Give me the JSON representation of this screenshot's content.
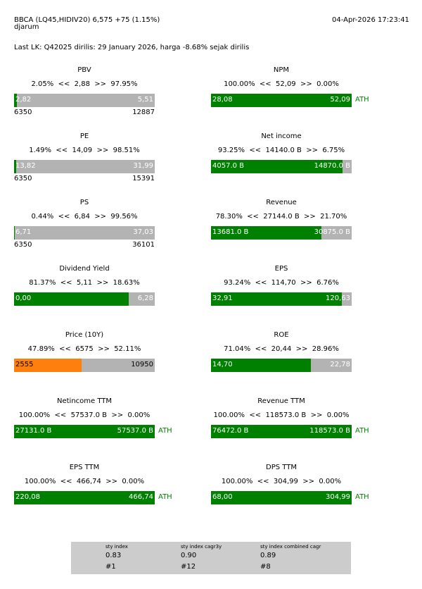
{
  "header": {
    "title": "BBCA (LQ45,HIDIV20) 6,575 +75 (1.15%)",
    "subtitle": "djarum",
    "datetime": "04-Apr-2026 17:23:41"
  },
  "last_lk": "Last LK: Q42025 dirilis: 29 January 2026, harga -8.68% sejak dirilis",
  "panels": [
    {
      "title": "PBV",
      "stats": "2.05%  <<  2,88  >>  97.95%",
      "fill_fraction": 0.0205,
      "fill_color": "#008000",
      "left_value": "2,82",
      "right_value": "5,51",
      "ath": "",
      "range_min": "6350",
      "range_max": "12887"
    },
    {
      "title": "NPM",
      "stats": "100.00%  <<  52,09  >>  0.00%",
      "fill_fraction": 1.0,
      "fill_color": "#008000",
      "left_value": "28,08",
      "right_value": "52,09",
      "ath": "ATH",
      "range_min": "",
      "range_max": ""
    },
    {
      "title": "PE",
      "stats": "1.49%  <<  14,09  >>  98.51%",
      "fill_fraction": 0.0149,
      "fill_color": "#008000",
      "left_value": "13,82",
      "right_value": "31,99",
      "ath": "",
      "range_min": "6350",
      "range_max": "15391"
    },
    {
      "title": "Net income",
      "stats": "93.25%  <<  14140.0 B  >>  6.75%",
      "fill_fraction": 0.9325,
      "fill_color": "#008000",
      "left_value": "4057.0 B",
      "right_value": "14870.0 B",
      "ath": "",
      "range_min": "",
      "range_max": ""
    },
    {
      "title": "PS",
      "stats": "0.44%  <<  6,84  >>  99.56%",
      "fill_fraction": 0.0044,
      "fill_color": "#008000",
      "left_value": "6,71",
      "right_value": "37,03",
      "ath": "",
      "range_min": "6350",
      "range_max": "36101"
    },
    {
      "title": "Revenue",
      "stats": "78.30%  <<  27144.0 B  >>  21.70%",
      "fill_fraction": 0.783,
      "fill_color": "#008000",
      "left_value": "13681.0 B",
      "right_value": "30875.0 B",
      "ath": "",
      "range_min": "",
      "range_max": ""
    },
    {
      "title": "Dividend Yield",
      "stats": "81.37%  <<  5,11  >>  18.63%",
      "fill_fraction": 0.8137,
      "fill_color": "#008000",
      "left_value": "0,00",
      "right_value": "6,28",
      "ath": "",
      "range_min": "",
      "range_max": ""
    },
    {
      "title": "EPS",
      "stats": "93.24%  <<  114,70  >>  6.76%",
      "fill_fraction": 0.9324,
      "fill_color": "#008000",
      "left_value": "32,91",
      "right_value": "120,63",
      "ath": "",
      "range_min": "",
      "range_max": ""
    },
    {
      "title": "Price (10Y)",
      "stats": "47.89%  <<  6575  >>  52.11%",
      "fill_fraction": 0.4789,
      "fill_color": "#ff7f0e",
      "left_value": "2555",
      "right_value": "10950",
      "ath": "",
      "range_min": "",
      "range_max": ""
    },
    {
      "title": "ROE",
      "stats": "71.04%  <<  20,44  >>  28.96%",
      "fill_fraction": 0.7104,
      "fill_color": "#008000",
      "left_value": "14,70",
      "right_value": "22,78",
      "ath": "",
      "range_min": "",
      "range_max": ""
    },
    {
      "title": "Netincome TTM",
      "stats": "100.00%  <<  57537.0 B  >>  0.00%",
      "fill_fraction": 1.0,
      "fill_color": "#008000",
      "left_value": "27131.0 B",
      "right_value": "57537.0 B",
      "ath": "ATH",
      "range_min": "",
      "range_max": ""
    },
    {
      "title": "Revenue TTM",
      "stats": "100.00%  <<  118573.0 B  >>  0.00%",
      "fill_fraction": 1.0,
      "fill_color": "#008000",
      "left_value": "76472.0 B",
      "right_value": "118573.0 B",
      "ath": "ATH",
      "range_min": "",
      "range_max": ""
    },
    {
      "title": "EPS TTM",
      "stats": "100.00%  <<  466,74  >>  0.00%",
      "fill_fraction": 1.0,
      "fill_color": "#008000",
      "left_value": "220,08",
      "right_value": "466,74",
      "ath": "ATH",
      "range_min": "",
      "range_max": ""
    },
    {
      "title": "DPS TTM",
      "stats": "100.00%  <<  304,99  >>  0.00%",
      "fill_fraction": 1.0,
      "fill_color": "#008000",
      "left_value": "68,00",
      "right_value": "304,99",
      "ath": "ATH",
      "range_min": "",
      "range_max": ""
    }
  ],
  "footer": {
    "items": [
      {
        "label": "sty index",
        "value": "0.83",
        "rank": "#1"
      },
      {
        "label": "sty index cagr3y",
        "value": "0.90",
        "rank": "#12"
      },
      {
        "label": "sty index combined cagr",
        "value": "0.89",
        "rank": "#8"
      }
    ]
  }
}
